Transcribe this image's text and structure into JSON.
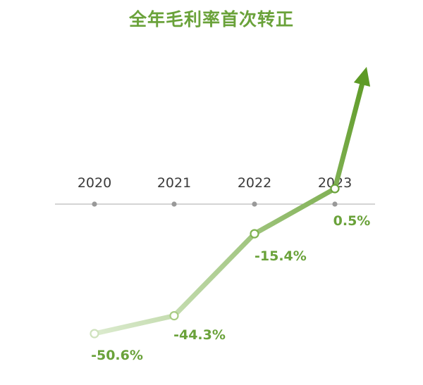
{
  "chart_data": {
    "type": "line",
    "title": "全年毛利率首次转正",
    "categories": [
      "2020",
      "2021",
      "2022",
      "2023"
    ],
    "series": [
      {
        "values": [
          -50.6,
          -44.3,
          -15.4,
          0.5
        ],
        "labels": [
          "-50.6%",
          "-44.3%",
          "-15.4%",
          "0.5%"
        ]
      }
    ],
    "ylim": [
      -50.6,
      0.5
    ],
    "grid": false,
    "legend": "none",
    "trend_arrow": true,
    "colors": {
      "title": "#6aa23a",
      "line_start": "#dcebcf",
      "line_end": "#5d9a25",
      "axis": "#bbbbbb",
      "tick": "#999999",
      "value_text": "#6aa23a"
    }
  }
}
